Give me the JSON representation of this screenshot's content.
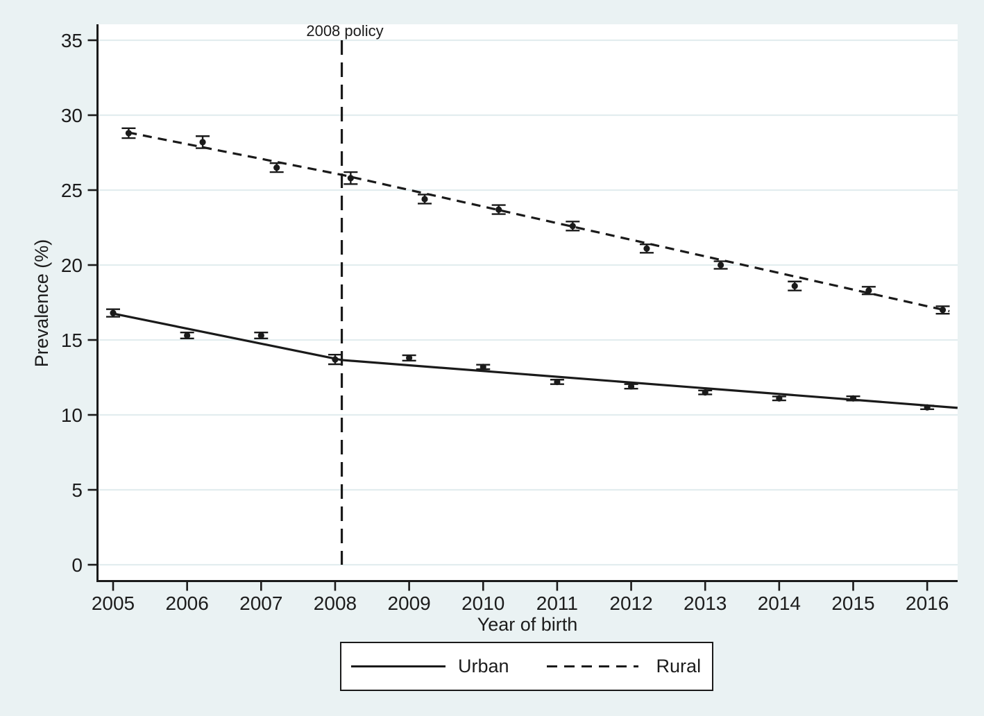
{
  "figure": {
    "background_color": "#eaf2f3",
    "plot_background_color": "#ffffff",
    "grid_color": "#e2edef",
    "line_color": "#1a1a1a",
    "text_color": "#1c1c1c"
  },
  "annotation": {
    "policy_label": "2008 policy"
  },
  "axes": {
    "x_title": "Year of birth",
    "y_title": "Prevalence (%)"
  },
  "legend": {
    "urban_label": "Urban",
    "rural_label": "Rural"
  },
  "chart_data": {
    "type": "line",
    "title": "",
    "xlabel": "Year of birth",
    "ylabel": "Prevalence (%)",
    "x": [
      2005,
      2006,
      2007,
      2008,
      2009,
      2010,
      2011,
      2012,
      2013,
      2014,
      2015,
      2016
    ],
    "y_ticks": [
      0,
      5,
      10,
      15,
      20,
      25,
      30,
      35
    ],
    "xlim": [
      2004.79,
      2016.41
    ],
    "ylim": [
      -1.2,
      36
    ],
    "grid": true,
    "legend_position": "bottom",
    "annotations": [
      {
        "type": "vline",
        "x": 2008.09,
        "style": "dashed",
        "label": "2008 policy",
        "y_span": [
          0,
          35
        ]
      }
    ],
    "series": [
      {
        "name": "Urban",
        "line_style": "solid",
        "marker": "filled-circle",
        "x_offset": 0,
        "values": [
          16.8,
          15.3,
          15.3,
          13.7,
          13.8,
          13.2,
          12.2,
          11.9,
          11.5,
          11.1,
          11.1,
          10.5
        ],
        "ci_halfwidth": [
          0.25,
          0.2,
          0.2,
          0.32,
          0.18,
          0.15,
          0.15,
          0.15,
          0.13,
          0.13,
          0.14,
          0.12
        ],
        "fit_line": [
          [
            2005.0,
            16.76
          ],
          [
            2008.09,
            13.66
          ],
          [
            2016.41,
            10.47
          ]
        ]
      },
      {
        "name": "Rural",
        "line_style": "dashed",
        "marker": "filled-circle",
        "x_offset": 0.21,
        "values": [
          28.8,
          28.2,
          26.5,
          25.8,
          24.4,
          23.7,
          22.6,
          21.1,
          20.0,
          18.6,
          18.3,
          17.0
        ],
        "ci_halfwidth": [
          0.33,
          0.4,
          0.3,
          0.4,
          0.3,
          0.3,
          0.3,
          0.28,
          0.25,
          0.3,
          0.25,
          0.25
        ],
        "fit_line": [
          [
            2005.2,
            28.85
          ],
          [
            2008.09,
            26.02
          ],
          [
            2016.3,
            16.92
          ]
        ]
      }
    ]
  }
}
